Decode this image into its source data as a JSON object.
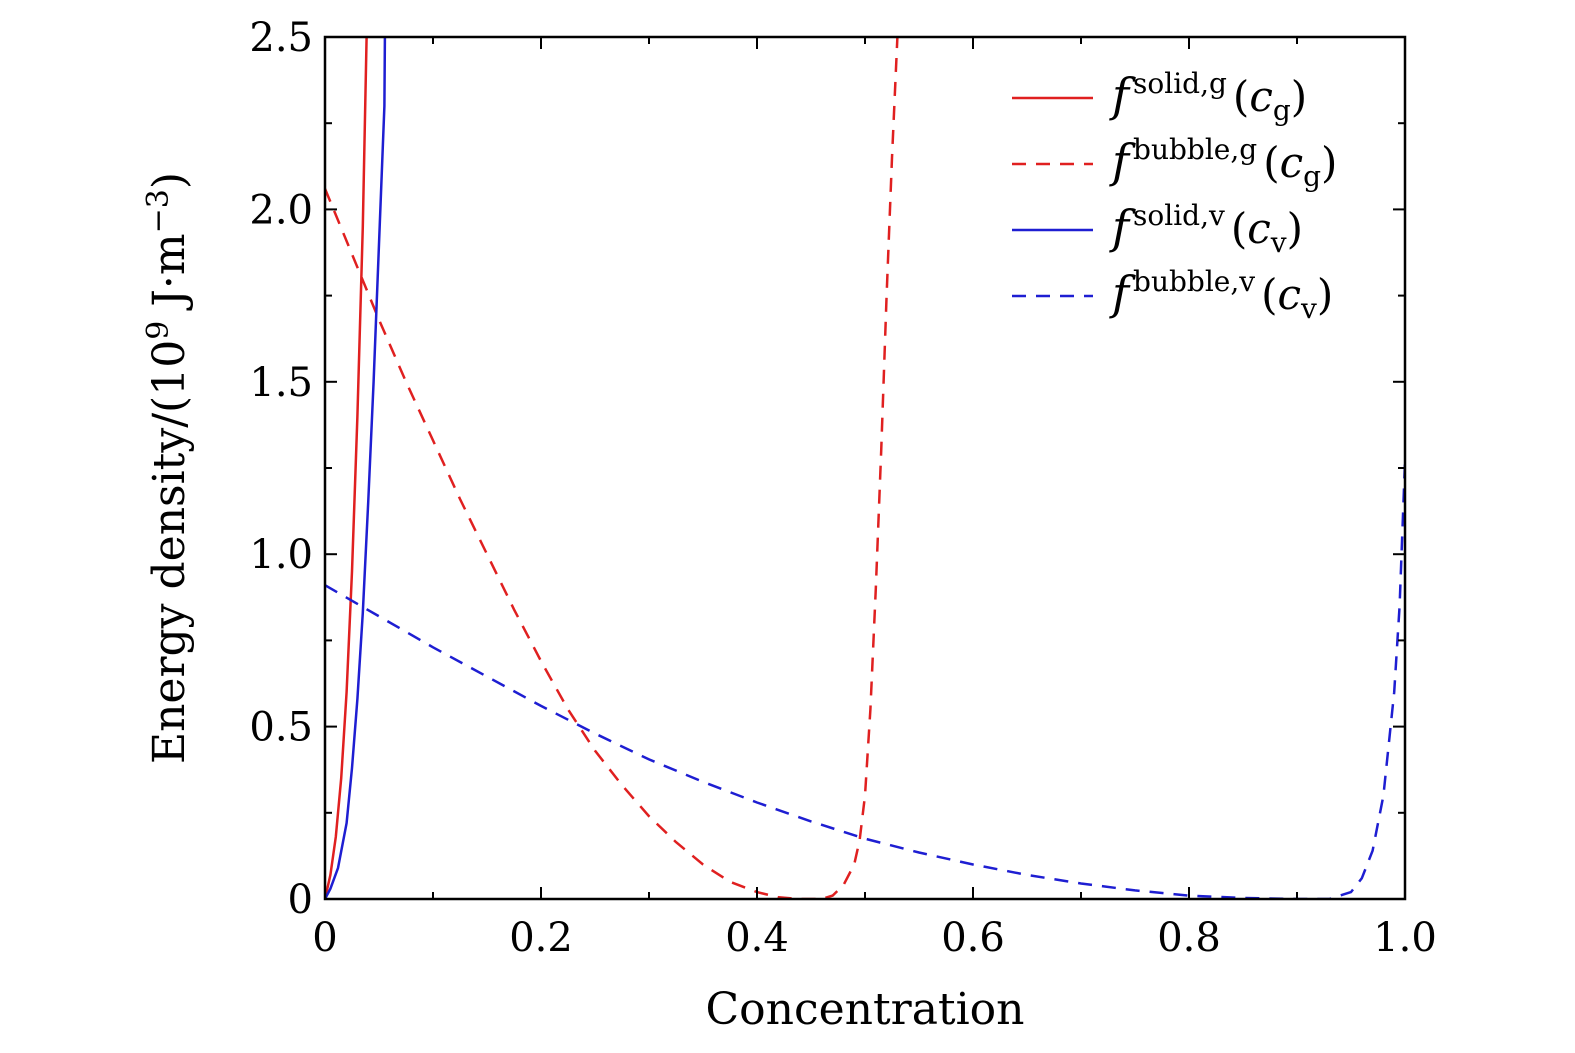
{
  "chart_data": {
    "type": "line",
    "title": "",
    "xlabel": "Concentration",
    "ylabel": "Energy density/(10",
    "ylabel_sup": "9",
    "ylabel_units": " J·m",
    "ylabel_units_sup": "−3",
    "ylabel_close": ")",
    "xlim": [
      0,
      1.0
    ],
    "ylim": [
      0,
      2.5
    ],
    "xticks": [
      {
        "value": 0,
        "label": "0"
      },
      {
        "value": 0.2,
        "label": "0.2"
      },
      {
        "value": 0.4,
        "label": "0.4"
      },
      {
        "value": 0.6,
        "label": "0.6"
      },
      {
        "value": 0.8,
        "label": "0.8"
      },
      {
        "value": 1.0,
        "label": "1.0"
      }
    ],
    "yticks": [
      {
        "value": 0,
        "label": "0"
      },
      {
        "value": 0.5,
        "label": "0.5"
      },
      {
        "value": 1.0,
        "label": "1.0"
      },
      {
        "value": 1.5,
        "label": "1.5"
      },
      {
        "value": 2.0,
        "label": "2.0"
      },
      {
        "value": 2.5,
        "label": "2.5"
      }
    ],
    "x_minor_step": 0.1,
    "y_minor_step": 0.25,
    "grid": false,
    "legend_position": "top-right",
    "series": [
      {
        "legend": {
          "f": "f",
          "sup": "solid,g",
          "c": "c",
          "sub": "g"
        },
        "color": "#e02020",
        "dash": "solid",
        "points": [
          [
            0,
            0
          ],
          [
            0.005,
            0.07
          ],
          [
            0.01,
            0.18
          ],
          [
            0.015,
            0.35
          ],
          [
            0.02,
            0.6
          ],
          [
            0.025,
            0.95
          ],
          [
            0.03,
            1.4
          ],
          [
            0.035,
            1.95
          ],
          [
            0.0385,
            2.5
          ]
        ]
      },
      {
        "legend": {
          "f": "f",
          "sup": "bubble,g",
          "c": "c",
          "sub": "g"
        },
        "color": "#e02020",
        "dash": "dashed",
        "points": [
          [
            0,
            2.06
          ],
          [
            0.025,
            1.87
          ],
          [
            0.05,
            1.68
          ],
          [
            0.075,
            1.5
          ],
          [
            0.1,
            1.33
          ],
          [
            0.125,
            1.16
          ],
          [
            0.15,
            1.0
          ],
          [
            0.175,
            0.84
          ],
          [
            0.2,
            0.69
          ],
          [
            0.225,
            0.55
          ],
          [
            0.25,
            0.43
          ],
          [
            0.275,
            0.33
          ],
          [
            0.3,
            0.24
          ],
          [
            0.325,
            0.165
          ],
          [
            0.35,
            0.1
          ],
          [
            0.375,
            0.05
          ],
          [
            0.4,
            0.02
          ],
          [
            0.42,
            0.005
          ],
          [
            0.44,
            0.0
          ],
          [
            0.46,
            0.0
          ],
          [
            0.47,
            0.01
          ],
          [
            0.48,
            0.04
          ],
          [
            0.49,
            0.1
          ],
          [
            0.495,
            0.17
          ],
          [
            0.5,
            0.3
          ],
          [
            0.505,
            0.55
          ],
          [
            0.51,
            0.9
          ],
          [
            0.515,
            1.3
          ],
          [
            0.52,
            1.75
          ],
          [
            0.525,
            2.15
          ],
          [
            0.53,
            2.5
          ]
        ]
      },
      {
        "legend": {
          "f": "f",
          "sup": "solid,v",
          "c": "c",
          "sub": "v"
        },
        "color": "#1e1ed2",
        "dash": "solid",
        "points": [
          [
            0,
            0
          ],
          [
            0.005,
            0.03
          ],
          [
            0.012,
            0.09
          ],
          [
            0.02,
            0.22
          ],
          [
            0.025,
            0.38
          ],
          [
            0.03,
            0.58
          ],
          [
            0.035,
            0.83
          ],
          [
            0.04,
            1.15
          ],
          [
            0.045,
            1.5
          ],
          [
            0.05,
            1.9
          ],
          [
            0.055,
            2.3
          ],
          [
            0.0555,
            2.5
          ]
        ]
      },
      {
        "legend": {
          "f": "f",
          "sup": "bubble,v",
          "c": "c",
          "sub": "v"
        },
        "color": "#1e1ed2",
        "dash": "dashed",
        "points": [
          [
            0,
            0.91
          ],
          [
            0.05,
            0.82
          ],
          [
            0.1,
            0.73
          ],
          [
            0.15,
            0.645
          ],
          [
            0.2,
            0.56
          ],
          [
            0.25,
            0.48
          ],
          [
            0.3,
            0.405
          ],
          [
            0.35,
            0.34
          ],
          [
            0.4,
            0.28
          ],
          [
            0.45,
            0.225
          ],
          [
            0.5,
            0.175
          ],
          [
            0.55,
            0.135
          ],
          [
            0.6,
            0.1
          ],
          [
            0.65,
            0.07
          ],
          [
            0.7,
            0.045
          ],
          [
            0.75,
            0.025
          ],
          [
            0.8,
            0.01
          ],
          [
            0.85,
            0.003
          ],
          [
            0.9,
            0.0
          ],
          [
            0.93,
            0.0
          ],
          [
            0.95,
            0.02
          ],
          [
            0.96,
            0.06
          ],
          [
            0.97,
            0.14
          ],
          [
            0.98,
            0.3
          ],
          [
            0.99,
            0.6
          ],
          [
            0.995,
            0.85
          ],
          [
            1.0,
            1.27
          ]
        ]
      }
    ]
  }
}
